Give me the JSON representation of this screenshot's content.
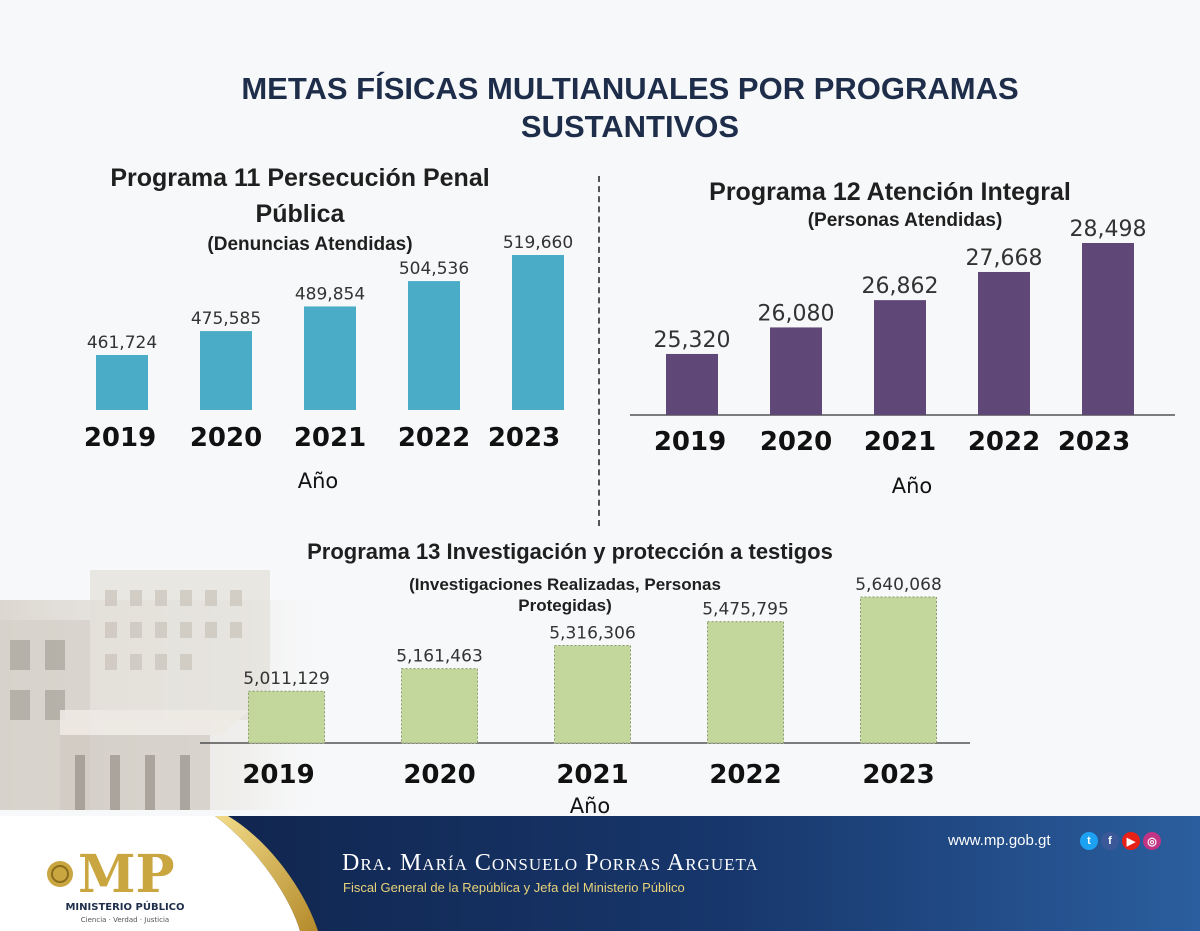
{
  "main_title": "METAS FÍSICAS MULTIANUALES POR PROGRAMAS SUSTANTIVOS",
  "chart_data": [
    {
      "type": "bar",
      "title": "Programa 11 Persecución Penal Pública",
      "subtitle": "(Denuncias Atendidas)",
      "xlabel": "Año",
      "ylabel": "",
      "categories": [
        "2019",
        "2020",
        "2021",
        "2022",
        "2023"
      ],
      "values": [
        461724,
        475585,
        489854,
        504536,
        519660
      ],
      "value_labels": [
        "461,724",
        "475,585",
        "489,854",
        "504,536",
        "519,660"
      ],
      "color": "#4aacc6",
      "grid": false
    },
    {
      "type": "bar",
      "title": "Programa 12 Atención Integral",
      "subtitle": "(Personas Atendidas)",
      "xlabel": "Año",
      "ylabel": "",
      "categories": [
        "2019",
        "2020",
        "2021",
        "2022",
        "2023"
      ],
      "values": [
        25320,
        26080,
        26862,
        27668,
        28498
      ],
      "value_labels": [
        "25,320",
        "26,080",
        "26,862",
        "27,668",
        "28,498"
      ],
      "color": "#5f4878",
      "grid": false
    },
    {
      "type": "bar",
      "title": "Programa 13 Investigación y protección a testigos",
      "subtitle": "(Investigaciones Realizadas, Personas Protegidas)",
      "xlabel": "Año",
      "ylabel": "",
      "categories": [
        "2019",
        "2020",
        "2021",
        "2022",
        "2023"
      ],
      "values": [
        5011129,
        5161463,
        5316306,
        5475795,
        5640068
      ],
      "value_labels": [
        "5,011,129",
        "5,161,463",
        "5,316,306",
        "5,475,795",
        "5,640,068"
      ],
      "color": "#c3d69b",
      "grid": false
    }
  ],
  "footer": {
    "logo_text": "MP",
    "logo_caption": "MINISTERIO PÚBLICO",
    "logo_motto": "Ciencia · Verdad · Justicia",
    "name": "Dra. María Consuelo Porras Argueta",
    "role": "Fiscal General de la República y Jefa del Ministerio Público",
    "url": "www.mp.gob.gt",
    "social_icons": [
      "twitter-icon",
      "facebook-icon",
      "youtube-icon",
      "instagram-icon"
    ],
    "colors": {
      "navy": "#152a56",
      "gold": "#c9a640",
      "url_text": "#ffffff"
    }
  }
}
